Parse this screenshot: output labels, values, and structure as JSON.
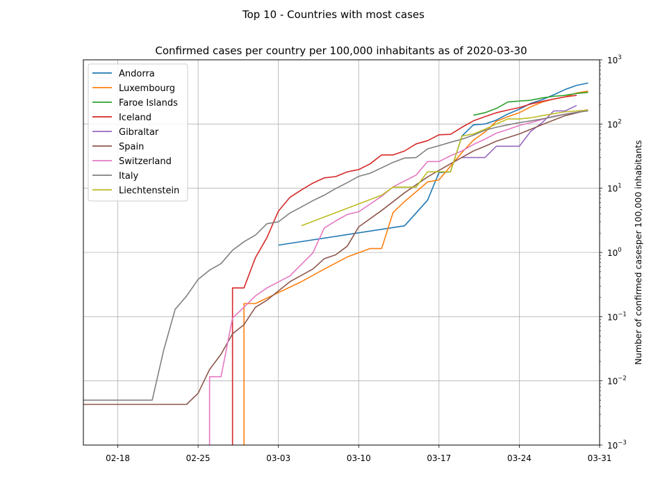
{
  "chart_data": {
    "type": "line",
    "suptitle": "Top 10 - Countries with most cases",
    "title": "Confirmed cases per country per 100,000 inhabitants as of 2020-03-30",
    "ylabel": "Number of confirmed casesper 100,000 inhabitants",
    "yscale": "log",
    "ylim": [
      0.001,
      1000
    ],
    "xlim": [
      "2020-02-15",
      "2020-03-31"
    ],
    "grid": true,
    "legend_position": "upper-left",
    "x_ticks": [
      {
        "date": "2020-02-18",
        "label": "02-18"
      },
      {
        "date": "2020-02-25",
        "label": "02-25"
      },
      {
        "date": "2020-03-03",
        "label": "03-03"
      },
      {
        "date": "2020-03-10",
        "label": "03-10"
      },
      {
        "date": "2020-03-17",
        "label": "03-17"
      },
      {
        "date": "2020-03-24",
        "label": "03-24"
      },
      {
        "date": "2020-03-31",
        "label": "03-31"
      }
    ],
    "y_ticks": [
      {
        "value": 0.001,
        "base": "10",
        "exp": "−3"
      },
      {
        "value": 0.01,
        "base": "10",
        "exp": "−2"
      },
      {
        "value": 0.1,
        "base": "10",
        "exp": "−1"
      },
      {
        "value": 1,
        "base": "10",
        "exp": "0"
      },
      {
        "value": 10,
        "base": "10",
        "exp": "1"
      },
      {
        "value": 100,
        "base": "10",
        "exp": "2"
      },
      {
        "value": 1000,
        "base": "10",
        "exp": "3"
      }
    ],
    "series": [
      {
        "name": "Andorra",
        "color": "#1f77b4",
        "points": [
          [
            "2020-03-03",
            1.3
          ],
          [
            "2020-03-14",
            2.6
          ],
          [
            "2020-03-16",
            6.5
          ],
          [
            "2020-03-17",
            17.5
          ],
          [
            "2020-03-18",
            18
          ],
          [
            "2020-03-19",
            65
          ],
          [
            "2020-03-20",
            97
          ],
          [
            "2020-03-21",
            100
          ],
          [
            "2020-03-22",
            115
          ],
          [
            "2020-03-23",
            143
          ],
          [
            "2020-03-24",
            170
          ],
          [
            "2020-03-25",
            210
          ],
          [
            "2020-03-26",
            240
          ],
          [
            "2020-03-27",
            285
          ],
          [
            "2020-03-28",
            345
          ],
          [
            "2020-03-29",
            400
          ],
          [
            "2020-03-30",
            435
          ]
        ]
      },
      {
        "name": "Luxembourg",
        "color": "#ff7f0e",
        "points": [
          [
            "2020-02-29",
            0.001
          ],
          [
            "2020-02-29",
            0.16
          ],
          [
            "2020-03-01",
            0.16
          ],
          [
            "2020-03-05",
            0.35
          ],
          [
            "2020-03-07",
            0.55
          ],
          [
            "2020-03-09",
            0.85
          ],
          [
            "2020-03-11",
            1.15
          ],
          [
            "2020-03-12",
            1.15
          ],
          [
            "2020-03-13",
            4.2
          ],
          [
            "2020-03-14",
            6.2
          ],
          [
            "2020-03-16",
            12.5
          ],
          [
            "2020-03-17",
            13.5
          ],
          [
            "2020-03-18",
            22
          ],
          [
            "2020-03-19",
            36
          ],
          [
            "2020-03-20",
            56
          ],
          [
            "2020-03-21",
            75
          ],
          [
            "2020-03-22",
            110
          ],
          [
            "2020-03-23",
            130
          ],
          [
            "2020-03-24",
            150
          ],
          [
            "2020-03-25",
            185
          ],
          [
            "2020-03-26",
            220
          ],
          [
            "2020-03-27",
            245
          ],
          [
            "2020-03-28",
            265
          ],
          [
            "2020-03-29",
            305
          ],
          [
            "2020-03-30",
            325
          ]
        ]
      },
      {
        "name": "Faroe Islands",
        "color": "#2ca02c",
        "points": [
          [
            "2020-03-20",
            137
          ],
          [
            "2020-03-21",
            150
          ],
          [
            "2020-03-22",
            175
          ],
          [
            "2020-03-23",
            220
          ],
          [
            "2020-03-24",
            228
          ],
          [
            "2020-03-25",
            235
          ],
          [
            "2020-03-26",
            255
          ],
          [
            "2020-03-27",
            270
          ],
          [
            "2020-03-28",
            280
          ],
          [
            "2020-03-29",
            300
          ],
          [
            "2020-03-30",
            310
          ]
        ]
      },
      {
        "name": "Iceland",
        "color": "#d62728",
        "points": [
          [
            "2020-02-28",
            0.001
          ],
          [
            "2020-02-28",
            0.28
          ],
          [
            "2020-02-29",
            0.28
          ],
          [
            "2020-03-01",
            0.83
          ],
          [
            "2020-03-02",
            1.7
          ],
          [
            "2020-03-03",
            4.4
          ],
          [
            "2020-03-04",
            7.2
          ],
          [
            "2020-03-05",
            9.4
          ],
          [
            "2020-03-06",
            12
          ],
          [
            "2020-03-07",
            14.5
          ],
          [
            "2020-03-08",
            15.2
          ],
          [
            "2020-03-09",
            18
          ],
          [
            "2020-03-10",
            19.5
          ],
          [
            "2020-03-11",
            24
          ],
          [
            "2020-03-12",
            33
          ],
          [
            "2020-03-13",
            33
          ],
          [
            "2020-03-14",
            38
          ],
          [
            "2020-03-15",
            49
          ],
          [
            "2020-03-16",
            55
          ],
          [
            "2020-03-17",
            68
          ],
          [
            "2020-03-18",
            69
          ],
          [
            "2020-03-19",
            89
          ],
          [
            "2020-03-20",
            112
          ],
          [
            "2020-03-21",
            130
          ],
          [
            "2020-03-22",
            150
          ],
          [
            "2020-03-23",
            165
          ],
          [
            "2020-03-24",
            180
          ],
          [
            "2020-03-25",
            205
          ],
          [
            "2020-03-26",
            225
          ],
          [
            "2020-03-27",
            245
          ],
          [
            "2020-03-28",
            265
          ],
          [
            "2020-03-29",
            280
          ]
        ]
      },
      {
        "name": "Gibraltar",
        "color": "#9467bd",
        "points": [
          [
            "2020-03-19",
            30
          ],
          [
            "2020-03-21",
            30
          ],
          [
            "2020-03-22",
            45
          ],
          [
            "2020-03-24",
            45
          ],
          [
            "2020-03-25",
            77
          ],
          [
            "2020-03-26",
            105
          ],
          [
            "2020-03-27",
            160
          ],
          [
            "2020-03-28",
            160
          ],
          [
            "2020-03-29",
            195
          ]
        ]
      },
      {
        "name": "Spain",
        "color": "#8c564b",
        "points": [
          [
            "2020-02-15",
            0.0043
          ],
          [
            "2020-02-24",
            0.0043
          ],
          [
            "2020-02-25",
            0.0064
          ],
          [
            "2020-02-26",
            0.015
          ],
          [
            "2020-02-27",
            0.026
          ],
          [
            "2020-02-28",
            0.054
          ],
          [
            "2020-02-29",
            0.075
          ],
          [
            "2020-03-01",
            0.14
          ],
          [
            "2020-03-02",
            0.18
          ],
          [
            "2020-03-04",
            0.35
          ],
          [
            "2020-03-06",
            0.55
          ],
          [
            "2020-03-07",
            0.8
          ],
          [
            "2020-03-08",
            0.92
          ],
          [
            "2020-03-09",
            1.25
          ],
          [
            "2020-03-10",
            2.5
          ],
          [
            "2020-03-12",
            4.5
          ],
          [
            "2020-03-14",
            8.5
          ],
          [
            "2020-03-16",
            15
          ],
          [
            "2020-03-18",
            24
          ],
          [
            "2020-03-20",
            38
          ],
          [
            "2020-03-21",
            45
          ],
          [
            "2020-03-22",
            54
          ],
          [
            "2020-03-24",
            70
          ],
          [
            "2020-03-26",
            98
          ],
          [
            "2020-03-28",
            135
          ],
          [
            "2020-03-30",
            165
          ]
        ]
      },
      {
        "name": "Switzerland",
        "color": "#e377c2",
        "points": [
          [
            "2020-02-26",
            0.001
          ],
          [
            "2020-02-26",
            0.0116
          ],
          [
            "2020-02-27",
            0.0116
          ],
          [
            "2020-02-28",
            0.095
          ],
          [
            "2020-02-29",
            0.14
          ],
          [
            "2020-03-01",
            0.21
          ],
          [
            "2020-03-02",
            0.28
          ],
          [
            "2020-03-04",
            0.43
          ],
          [
            "2020-03-05",
            0.65
          ],
          [
            "2020-03-06",
            0.98
          ],
          [
            "2020-03-07",
            2.4
          ],
          [
            "2020-03-08",
            3.1
          ],
          [
            "2020-03-09",
            3.9
          ],
          [
            "2020-03-10",
            4.3
          ],
          [
            "2020-03-12",
            7.5
          ],
          [
            "2020-03-13",
            10.5
          ],
          [
            "2020-03-14",
            13
          ],
          [
            "2020-03-15",
            16
          ],
          [
            "2020-03-16",
            26
          ],
          [
            "2020-03-17",
            26
          ],
          [
            "2020-03-18",
            32
          ],
          [
            "2020-03-19",
            38
          ],
          [
            "2020-03-20",
            48
          ],
          [
            "2020-03-21",
            58
          ],
          [
            "2020-03-22",
            72
          ],
          [
            "2020-03-23",
            82
          ],
          [
            "2020-03-24",
            95
          ],
          [
            "2020-03-25",
            105
          ],
          [
            "2020-03-26",
            118
          ],
          [
            "2020-03-27",
            132
          ],
          [
            "2020-03-28",
            143
          ],
          [
            "2020-03-29",
            152
          ],
          [
            "2020-03-30",
            168
          ]
        ]
      },
      {
        "name": "Italy",
        "color": "#7f7f7f",
        "points": [
          [
            "2020-02-15",
            0.005
          ],
          [
            "2020-02-21",
            0.005
          ],
          [
            "2020-02-22",
            0.03
          ],
          [
            "2020-02-23",
            0.13
          ],
          [
            "2020-02-24",
            0.21
          ],
          [
            "2020-02-25",
            0.38
          ],
          [
            "2020-02-26",
            0.53
          ],
          [
            "2020-02-27",
            0.67
          ],
          [
            "2020-02-28",
            1.08
          ],
          [
            "2020-02-29",
            1.47
          ],
          [
            "2020-03-01",
            1.86
          ],
          [
            "2020-03-02",
            2.8
          ],
          [
            "2020-03-03",
            3.0
          ],
          [
            "2020-03-04",
            4.1
          ],
          [
            "2020-03-05",
            5.1
          ],
          [
            "2020-03-06",
            6.4
          ],
          [
            "2020-03-07",
            7.8
          ],
          [
            "2020-03-08",
            9.9
          ],
          [
            "2020-03-09",
            12.2
          ],
          [
            "2020-03-10",
            15.3
          ],
          [
            "2020-03-11",
            17.1
          ],
          [
            "2020-03-12",
            20.8
          ],
          [
            "2020-03-13",
            25.3
          ],
          [
            "2020-03-14",
            29.5
          ],
          [
            "2020-03-15",
            30
          ],
          [
            "2020-03-16",
            41
          ],
          [
            "2020-03-17",
            46
          ],
          [
            "2020-03-18",
            52
          ],
          [
            "2020-03-19",
            58
          ],
          [
            "2020-03-20",
            67
          ],
          [
            "2020-03-21",
            80
          ],
          [
            "2020-03-22",
            89
          ],
          [
            "2020-03-23",
            97
          ],
          [
            "2020-03-24",
            105
          ],
          [
            "2020-03-25",
            112
          ],
          [
            "2020-03-26",
            120
          ],
          [
            "2020-03-27",
            130
          ],
          [
            "2020-03-28",
            142
          ],
          [
            "2020-03-29",
            152
          ],
          [
            "2020-03-30",
            160
          ]
        ]
      },
      {
        "name": "Liechtenstein",
        "color": "#bcbd22",
        "points": [
          [
            "2020-03-05",
            2.6
          ],
          [
            "2020-03-12",
            7.8
          ],
          [
            "2020-03-13",
            10.4
          ],
          [
            "2020-03-15",
            10.4
          ],
          [
            "2020-03-16",
            18
          ],
          [
            "2020-03-17",
            18
          ],
          [
            "2020-03-18",
            18
          ],
          [
            "2020-03-19",
            65
          ],
          [
            "2020-03-20",
            70
          ],
          [
            "2020-03-21",
            83
          ],
          [
            "2020-03-22",
            100
          ],
          [
            "2020-03-23",
            120
          ],
          [
            "2020-03-24",
            120
          ],
          [
            "2020-03-25",
            125
          ],
          [
            "2020-03-26",
            135
          ],
          [
            "2020-03-27",
            145
          ],
          [
            "2020-03-28",
            155
          ],
          [
            "2020-03-29",
            160
          ],
          [
            "2020-03-30",
            165
          ]
        ]
      }
    ]
  }
}
